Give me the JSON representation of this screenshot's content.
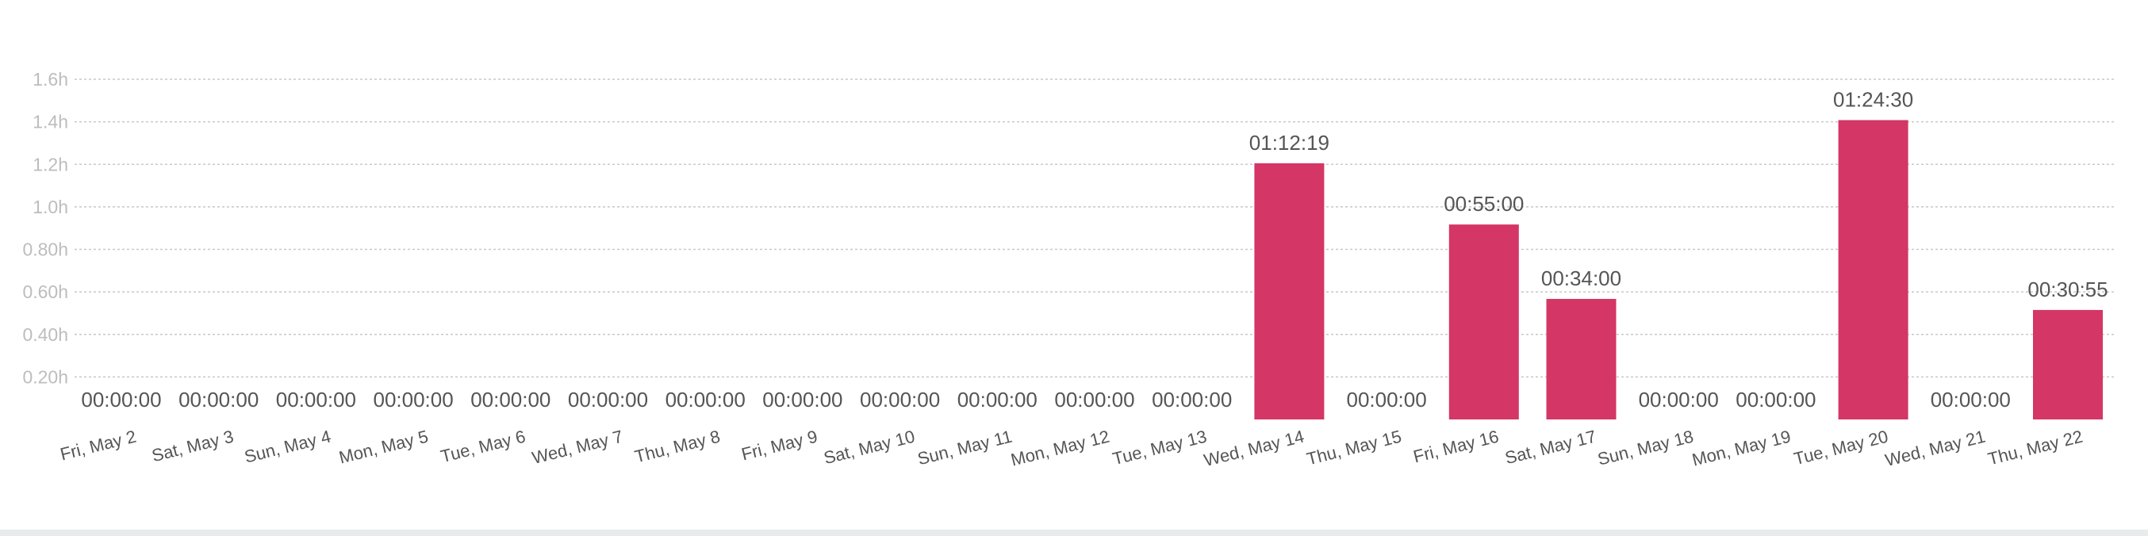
{
  "chart_data": {
    "type": "bar",
    "categories": [
      "Fri, May 2",
      "Sat, May 3",
      "Sun, May 4",
      "Mon, May 5",
      "Tue, May 6",
      "Wed, May 7",
      "Thu, May 8",
      "Fri, May 9",
      "Sat, May 10",
      "Sun, May 11",
      "Mon, May 12",
      "Tue, May 13",
      "Wed, May 14",
      "Thu, May 15",
      "Fri, May 16",
      "Sat, May 17",
      "Sun, May 18",
      "Mon, May 19",
      "Tue, May 20",
      "Wed, May 21",
      "Thu, May 22"
    ],
    "values": [
      0,
      0,
      0,
      0,
      0,
      0,
      0,
      0,
      0,
      0,
      0,
      0,
      1.205,
      0,
      0.917,
      0.567,
      0,
      0,
      1.408,
      0,
      0.515
    ],
    "value_labels": [
      "00:00:00",
      "00:00:00",
      "00:00:00",
      "00:00:00",
      "00:00:00",
      "00:00:00",
      "00:00:00",
      "00:00:00",
      "00:00:00",
      "00:00:00",
      "00:00:00",
      "00:00:00",
      "01:12:19",
      "00:00:00",
      "00:55:00",
      "00:34:00",
      "00:00:00",
      "00:00:00",
      "01:24:30",
      "00:00:00",
      "00:30:55"
    ],
    "y_ticks": [
      0.2,
      0.4,
      0.6,
      0.8,
      1.0,
      1.2,
      1.4,
      1.6
    ],
    "y_tick_labels": [
      "0.20h",
      "0.40h",
      "0.60h",
      "0.80h",
      "1.0h",
      "1.2h",
      "1.4h",
      "1.6h"
    ],
    "ylim": [
      0,
      1.6
    ],
    "grid": true,
    "legend": "none",
    "colors": {
      "bar": "#d43665",
      "grid": "#c8c8c8",
      "tick_label": "#bdbdbd",
      "value_label": "#555555",
      "category_label": "#555555"
    }
  }
}
